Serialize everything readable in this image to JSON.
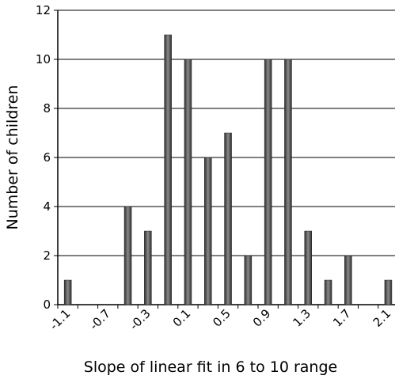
{
  "chart_data": {
    "type": "bar",
    "x_label": "Slope of linear fit in 6 to 10 range",
    "y_label": "Number of children",
    "categories": [
      "-1.1",
      null,
      "-0.7",
      null,
      "-0.3",
      null,
      "0.1",
      null,
      "0.5",
      null,
      "0.9",
      null,
      "1.3",
      null,
      "1.7",
      null,
      "2.1"
    ],
    "values": [
      1,
      0,
      0,
      4,
      3,
      11,
      10,
      6,
      7,
      2,
      10,
      10,
      3,
      1,
      2,
      0,
      1
    ],
    "color": "#4a4a4a",
    "ylim": [
      0,
      12
    ],
    "yticks": [
      0,
      2,
      4,
      6,
      8,
      10,
      12
    ],
    "grid": true
  }
}
